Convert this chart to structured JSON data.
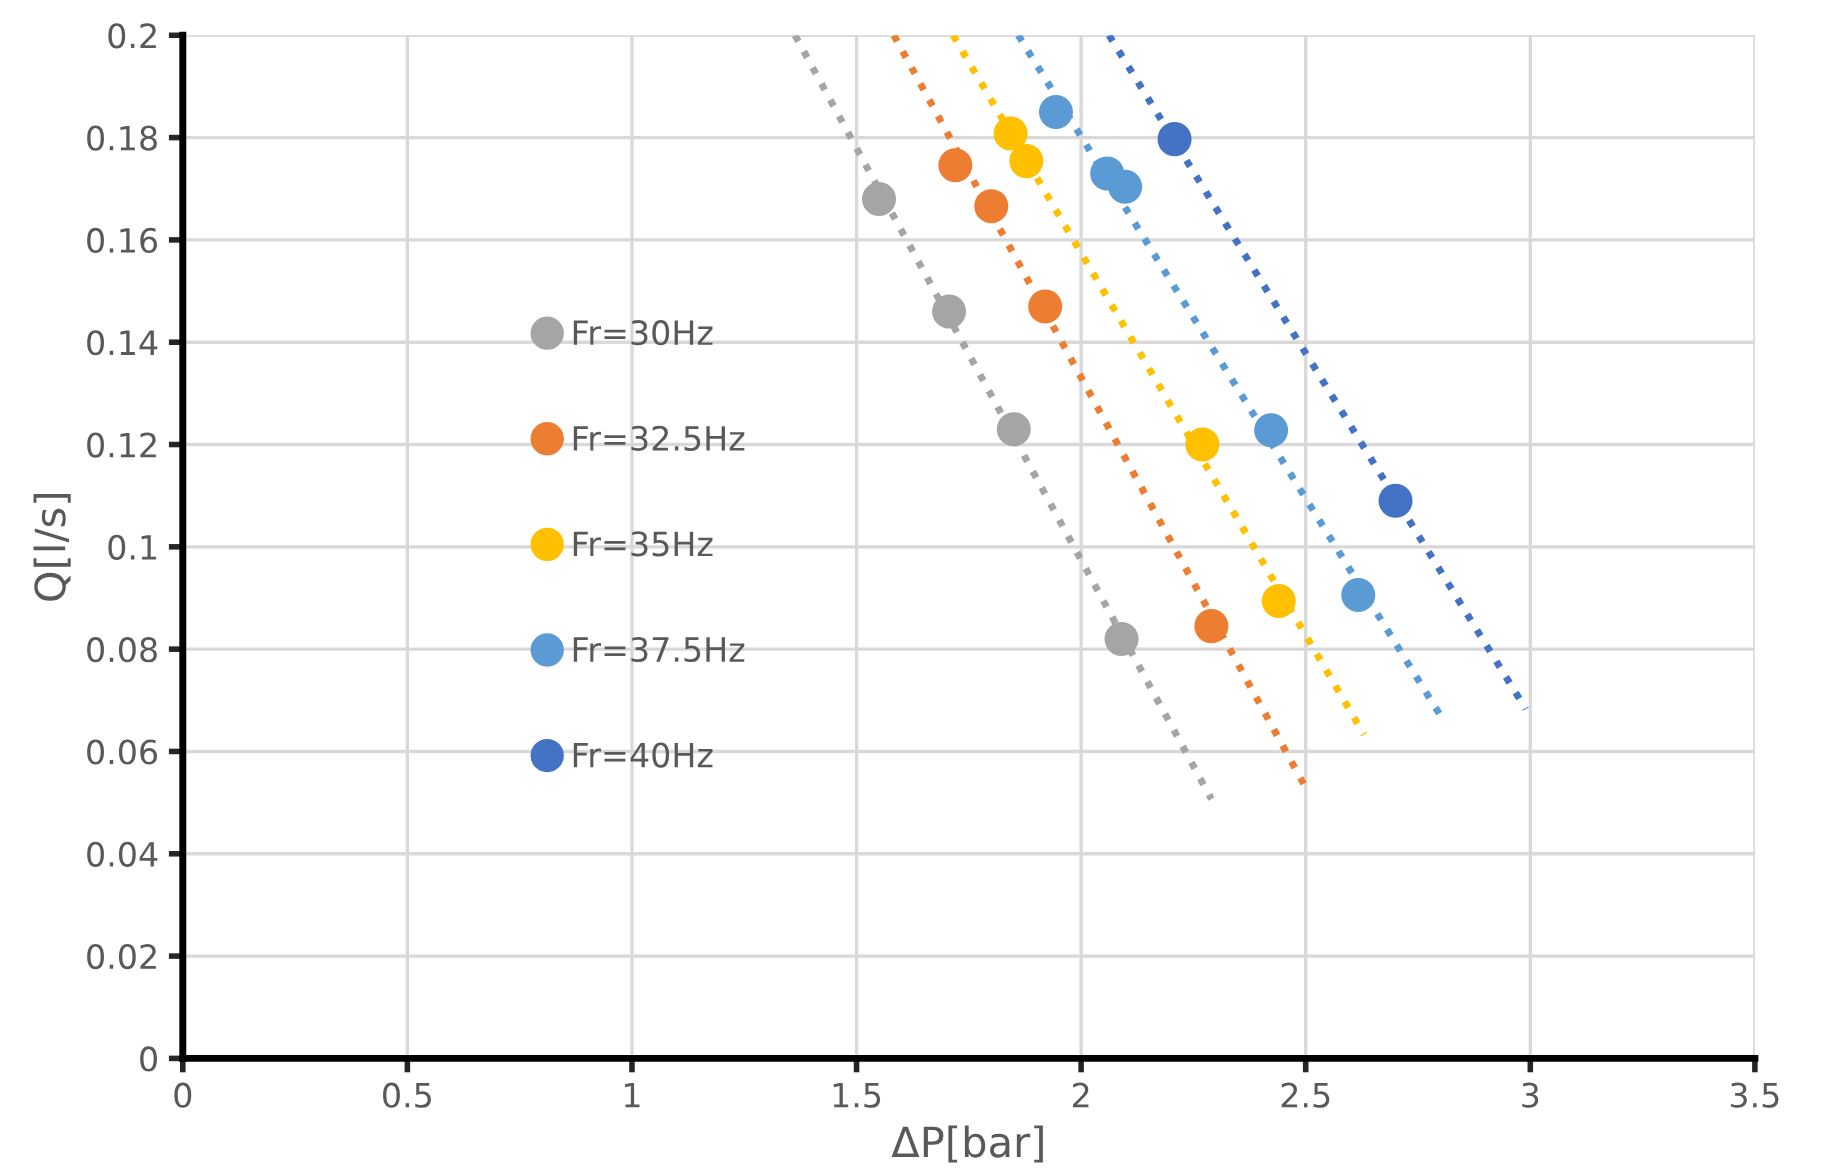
{
  "chart_data": {
    "type": "scatter",
    "xlabel": "ΔP[bar]",
    "ylabel": "Q[l/s]",
    "xlim": [
      0,
      3.5
    ],
    "ylim": [
      0,
      0.2
    ],
    "xticks": [
      0,
      0.5,
      1,
      1.5,
      2,
      2.5,
      3,
      3.5
    ],
    "yticks": [
      0,
      0.02,
      0.04,
      0.06,
      0.08,
      0.1,
      0.12,
      0.14,
      0.16,
      0.18,
      0.2
    ],
    "grid": true,
    "legend": "left",
    "marker": "circle",
    "series": [
      {
        "name": "Fr=30Hz",
        "color": "#a5a5a5",
        "x": [
          1.55,
          1.706,
          1.85,
          2.09
        ],
        "values": [
          0.168,
          0.146,
          0.123,
          0.082
        ]
      },
      {
        "name": "Fr=32.5Hz",
        "color": "#ed7d31",
        "x": [
          1.72,
          1.8,
          1.92,
          2.29
        ],
        "values": [
          0.1746,
          0.1666,
          0.147,
          0.0845
        ]
      },
      {
        "name": "Fr=35Hz",
        "color": "#ffc000",
        "x": [
          1.843,
          1.878,
          2.27,
          2.44
        ],
        "values": [
          0.1808,
          0.1754,
          0.12,
          0.0894
        ]
      },
      {
        "name": "Fr=37.5Hz",
        "color": "#5b9bd5",
        "x": [
          1.944,
          2.058,
          2.098,
          2.423,
          2.617
        ],
        "values": [
          0.185,
          0.173,
          0.1704,
          0.1228,
          0.0906
        ]
      },
      {
        "name": "Fr=40Hz",
        "color": "#4472c4",
        "x": [
          2.208,
          2.7
        ],
        "values": [
          0.1797,
          0.109
        ]
      },
      {
        "type": "line",
        "marker": "none",
        "line_style": "dotted",
        "color": "#a5a5a5",
        "x": [
          1.363,
          2.29
        ],
        "values": [
          0.2,
          0.0507
        ]
      },
      {
        "type": "line",
        "marker": "none",
        "line_style": "dotted",
        "color": "#ed7d31",
        "x": [
          1.583,
          2.502
        ],
        "values": [
          0.2,
          0.0526
        ]
      },
      {
        "type": "line",
        "marker": "none",
        "line_style": "dotted",
        "color": "#ffc000",
        "x": [
          1.715,
          2.63
        ],
        "values": [
          0.2,
          0.0633
        ]
      },
      {
        "type": "line",
        "marker": "none",
        "line_style": "dotted",
        "color": "#5b9bd5",
        "x": [
          1.86,
          2.81
        ],
        "values": [
          0.2,
          0.0656
        ]
      },
      {
        "type": "line",
        "marker": "none",
        "line_style": "dotted",
        "color": "#4472c4",
        "x": [
          2.062,
          2.99
        ],
        "values": [
          0.2,
          0.0683
        ]
      }
    ]
  }
}
